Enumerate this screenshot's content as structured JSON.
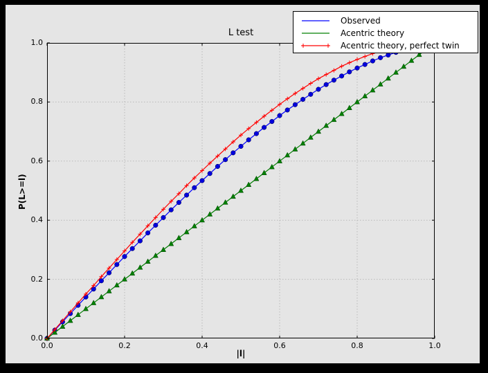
{
  "window": {
    "outer_background": "#000000",
    "canvas_background": "#e5e5e5",
    "plot_background": "#ffffff",
    "grid_color": "#b9b9b9"
  },
  "chart_data": {
    "type": "line",
    "title": "L test",
    "xlabel": "|l|",
    "ylabel": "P(L>=l)",
    "xlim": [
      0.0,
      1.0
    ],
    "ylim": [
      0.0,
      1.0
    ],
    "grid": true,
    "legend_position": "upper right",
    "x_ticks": [
      "0.0",
      "0.2",
      "0.4",
      "0.6",
      "0.8",
      "1.0"
    ],
    "y_ticks": [
      "0.0",
      "0.2",
      "0.4",
      "0.6",
      "0.8",
      "1.0"
    ],
    "x": [
      0.0,
      0.02,
      0.04,
      0.06,
      0.08,
      0.1,
      0.12,
      0.14,
      0.16,
      0.18,
      0.2,
      0.22,
      0.24,
      0.26,
      0.28,
      0.3,
      0.32,
      0.34,
      0.36,
      0.38,
      0.4,
      0.42,
      0.44,
      0.46,
      0.48,
      0.5,
      0.52,
      0.54,
      0.56,
      0.58,
      0.6,
      0.62,
      0.64,
      0.66,
      0.68,
      0.7,
      0.72,
      0.74,
      0.76,
      0.78,
      0.8,
      0.82,
      0.84,
      0.86,
      0.88,
      0.9,
      0.92,
      0.94,
      0.96,
      0.98,
      1.0
    ],
    "series": [
      {
        "name": "Observed",
        "color": "#0000ff",
        "marker": "circle",
        "marker_fill": "#0000dd",
        "legend_markers": false,
        "values": [
          0.0,
          0.028,
          0.056,
          0.084,
          0.112,
          0.14,
          0.167,
          0.195,
          0.222,
          0.25,
          0.277,
          0.304,
          0.33,
          0.357,
          0.383,
          0.409,
          0.435,
          0.46,
          0.485,
          0.51,
          0.534,
          0.558,
          0.582,
          0.605,
          0.628,
          0.65,
          0.672,
          0.693,
          0.714,
          0.734,
          0.754,
          0.773,
          0.791,
          0.809,
          0.826,
          0.843,
          0.859,
          0.874,
          0.888,
          0.902,
          0.915,
          0.927,
          0.939,
          0.95,
          0.959,
          0.968,
          0.977,
          0.984,
          0.99,
          0.996,
          1.0
        ]
      },
      {
        "name": "Acentric theory",
        "color": "#008000",
        "marker": "triangle-up",
        "marker_fill": "#008000",
        "legend_markers": false,
        "values": [
          0.0,
          0.02,
          0.04,
          0.06,
          0.08,
          0.1,
          0.12,
          0.14,
          0.16,
          0.18,
          0.2,
          0.22,
          0.24,
          0.26,
          0.28,
          0.3,
          0.32,
          0.34,
          0.36,
          0.38,
          0.4,
          0.42,
          0.44,
          0.46,
          0.48,
          0.5,
          0.52,
          0.54,
          0.56,
          0.58,
          0.6,
          0.62,
          0.64,
          0.66,
          0.68,
          0.7,
          0.72,
          0.74,
          0.76,
          0.78,
          0.8,
          0.82,
          0.84,
          0.86,
          0.88,
          0.9,
          0.92,
          0.94,
          0.96,
          0.98,
          1.0
        ]
      },
      {
        "name": "Acentric theory, perfect twin",
        "color": "#ff0000",
        "marker": "plus",
        "marker_fill": "#ff0000",
        "legend_markers": true,
        "values": [
          0.0,
          0.03,
          0.06,
          0.09,
          0.12,
          0.15,
          0.179,
          0.209,
          0.238,
          0.267,
          0.296,
          0.325,
          0.353,
          0.381,
          0.409,
          0.437,
          0.464,
          0.49,
          0.517,
          0.543,
          0.568,
          0.593,
          0.617,
          0.641,
          0.665,
          0.688,
          0.71,
          0.731,
          0.752,
          0.772,
          0.792,
          0.811,
          0.829,
          0.846,
          0.863,
          0.879,
          0.893,
          0.907,
          0.921,
          0.933,
          0.944,
          0.954,
          0.964,
          0.972,
          0.979,
          0.986,
          0.991,
          0.995,
          0.998,
          0.999,
          1.0
        ]
      }
    ]
  }
}
